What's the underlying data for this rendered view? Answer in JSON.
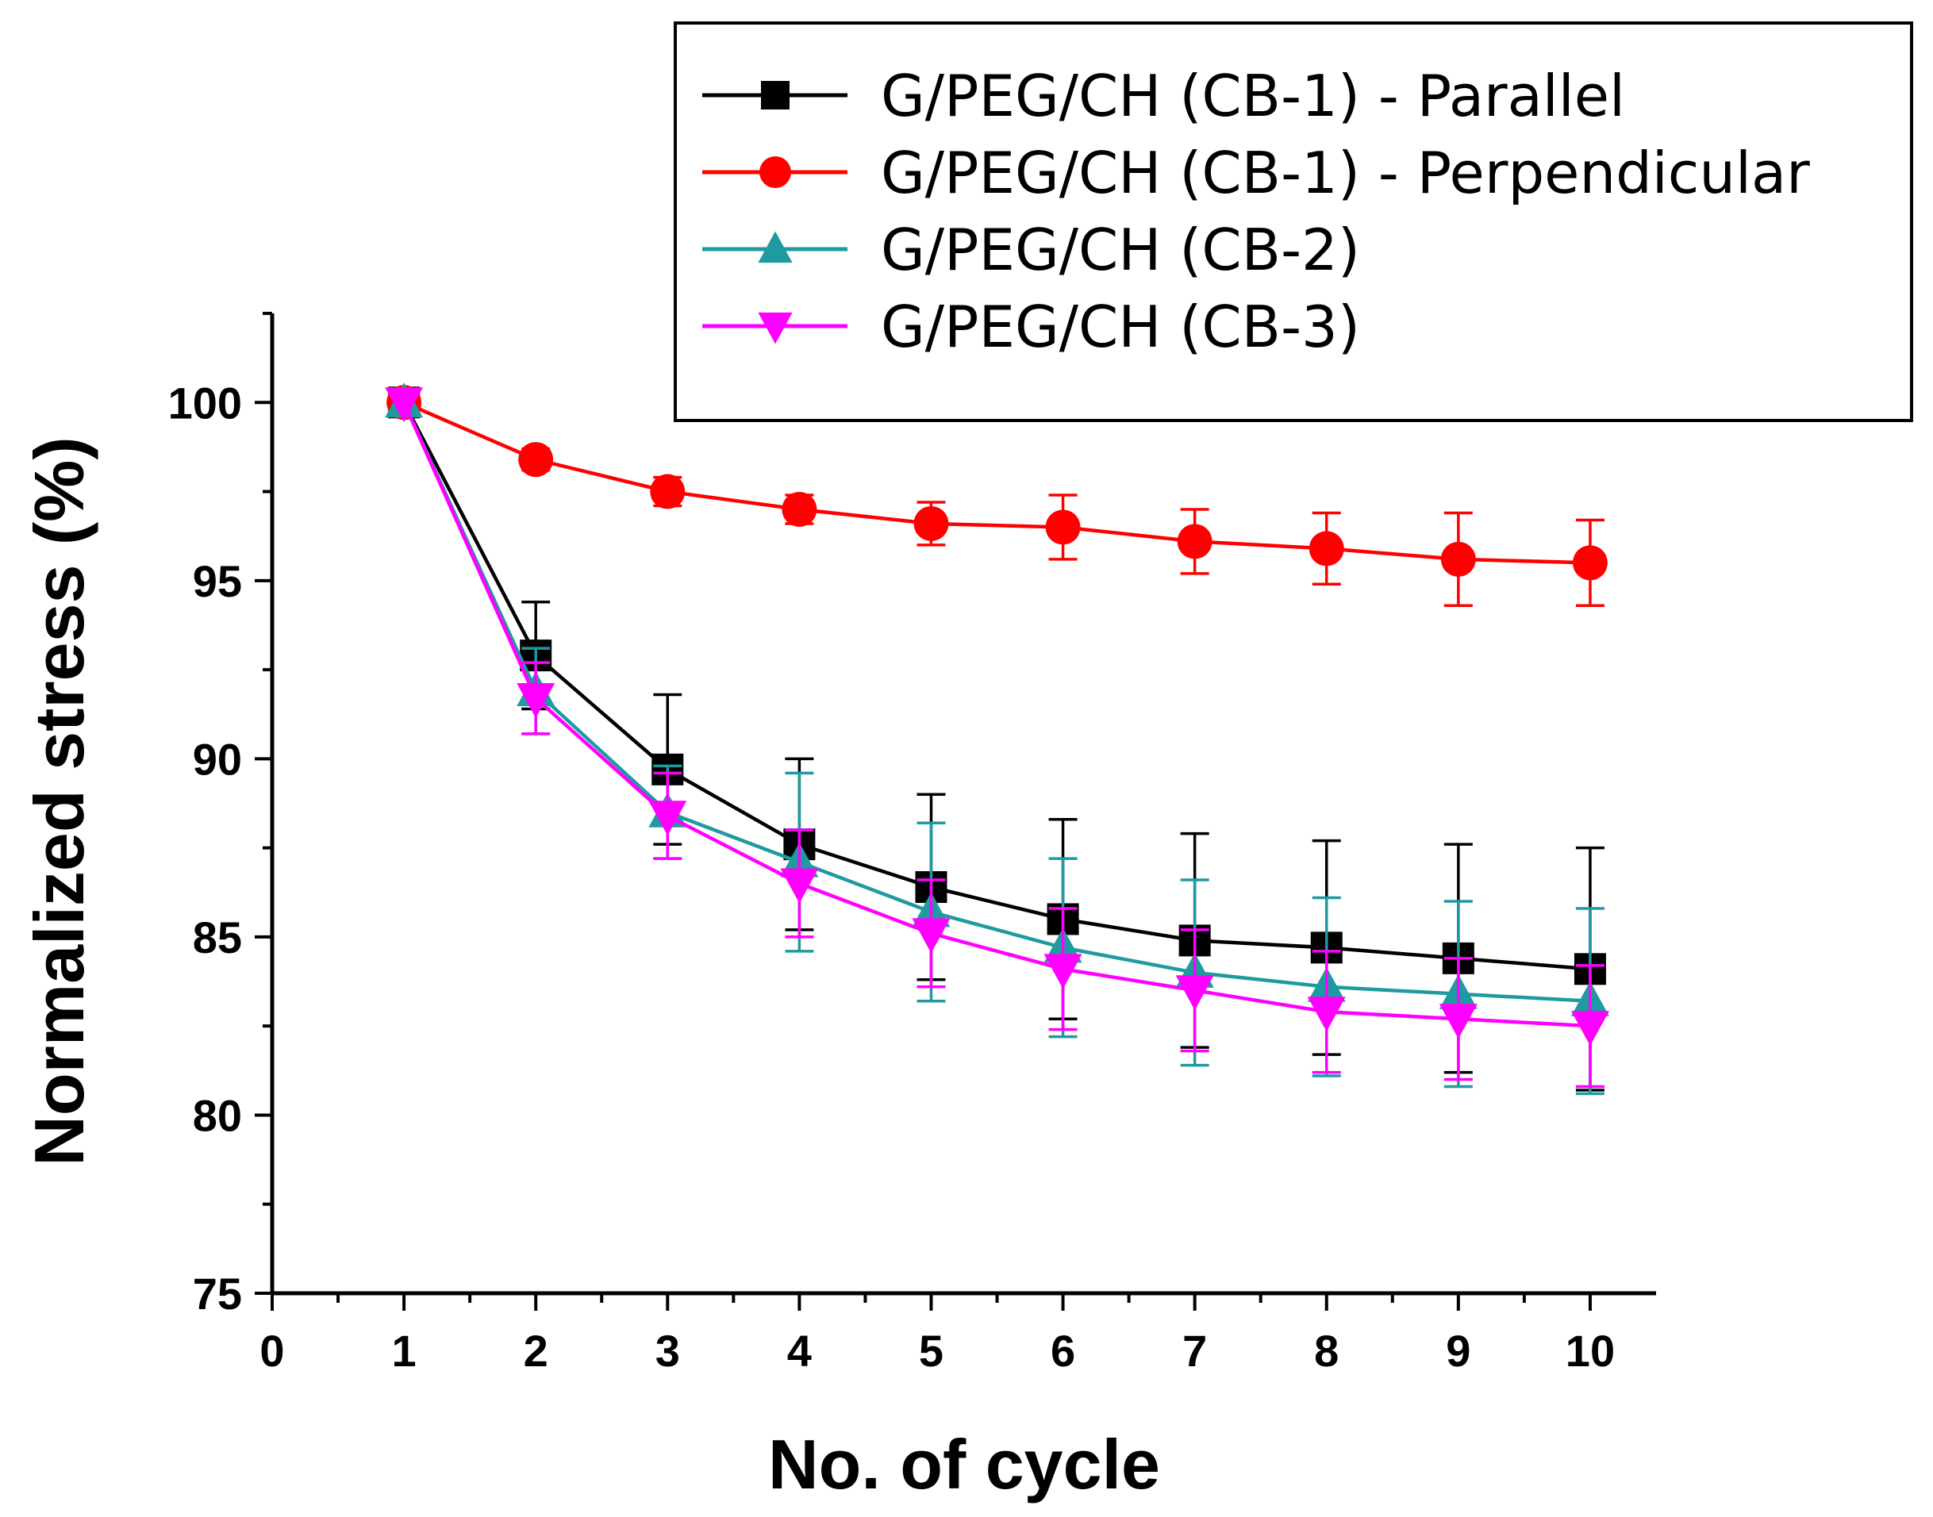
{
  "chart_data": {
    "type": "line",
    "xlabel": "No. of cycle",
    "ylabel": "Normalized stress (%)",
    "xlim": [
      0,
      10.5
    ],
    "ylim": [
      75,
      102.5
    ],
    "xticks": [
      0,
      1,
      2,
      3,
      4,
      5,
      6,
      7,
      8,
      9,
      10
    ],
    "yticks": [
      75,
      80,
      85,
      90,
      95,
      100
    ],
    "x": [
      1,
      2,
      3,
      4,
      5,
      6,
      7,
      8,
      9,
      10
    ],
    "legend_position": "top-right",
    "series": [
      {
        "name": "G/PEG/CH (CB-1) - Parallel",
        "color": "#000000",
        "marker": "square",
        "values": [
          100,
          92.9,
          89.7,
          87.6,
          86.4,
          85.5,
          84.9,
          84.7,
          84.4,
          84.1
        ],
        "errors": [
          0,
          1.5,
          2.1,
          2.4,
          2.6,
          2.8,
          3.0,
          3.0,
          3.2,
          3.4
        ]
      },
      {
        "name": "G/PEG/CH (CB-1) - Perpendicular",
        "color": "#ff0000",
        "marker": "circle",
        "values": [
          100,
          98.4,
          97.5,
          97.0,
          96.6,
          96.5,
          96.1,
          95.9,
          95.6,
          95.5
        ],
        "errors": [
          0,
          0.3,
          0.4,
          0.4,
          0.6,
          0.9,
          0.9,
          1.0,
          1.3,
          1.2
        ]
      },
      {
        "name": "G/PEG/CH (CB-2)",
        "color": "#1e9aa0",
        "marker": "triangle-up",
        "values": [
          100,
          91.9,
          88.5,
          87.1,
          85.7,
          84.7,
          84.0,
          83.6,
          83.4,
          83.2
        ],
        "errors": [
          0,
          1.2,
          1.3,
          2.5,
          2.5,
          2.5,
          2.6,
          2.5,
          2.6,
          2.6
        ]
      },
      {
        "name": "G/PEG/CH (CB-3)",
        "color": "#ff00ff",
        "marker": "triangle-down",
        "values": [
          100,
          91.7,
          88.4,
          86.5,
          85.1,
          84.1,
          83.5,
          82.9,
          82.7,
          82.5
        ],
        "errors": [
          0,
          1.0,
          1.2,
          1.5,
          1.5,
          1.7,
          1.7,
          1.7,
          1.7,
          1.7
        ]
      }
    ]
  }
}
